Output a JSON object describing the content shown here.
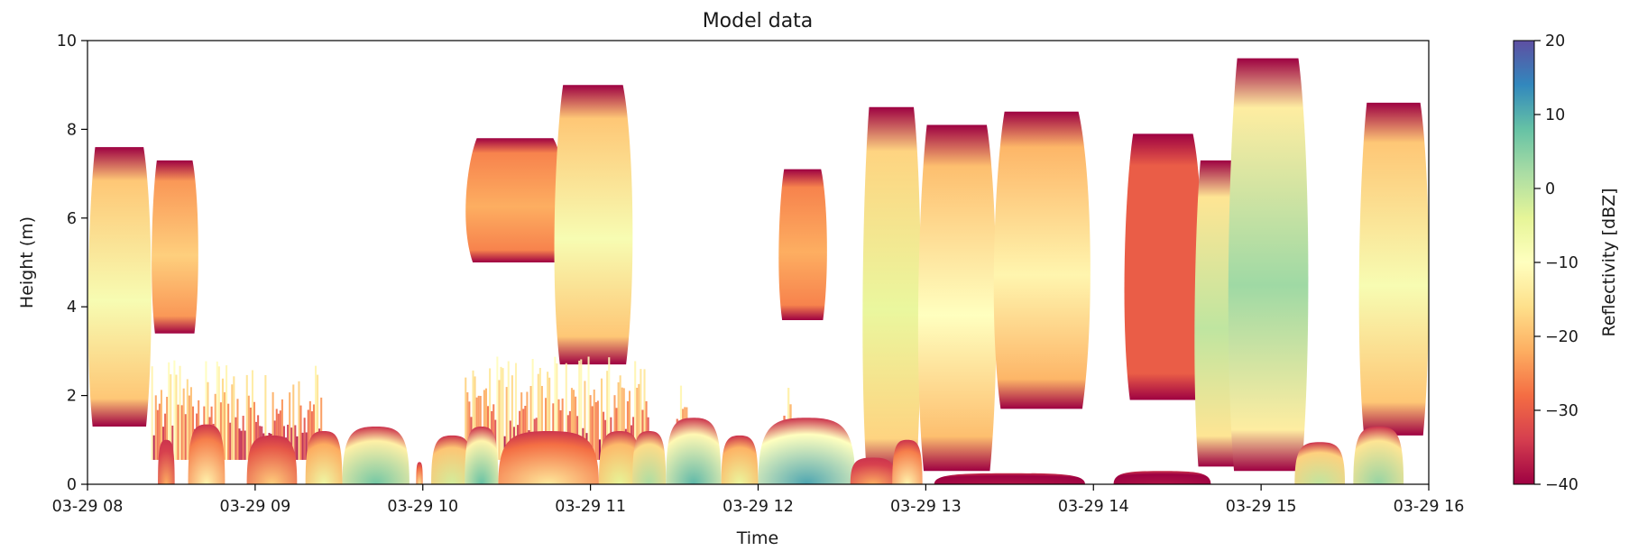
{
  "chart_data": {
    "type": "heatmap",
    "title": "Model data",
    "xlabel": "Time",
    "ylabel": "Height (m)",
    "x_tick_labels": [
      "03-29 08",
      "03-29 09",
      "03-29 10",
      "03-29 11",
      "03-29 12",
      "03-29 13",
      "03-29 14",
      "03-29 15",
      "03-29 16"
    ],
    "x_range_hours": [
      8,
      16
    ],
    "ylim": [
      0,
      10
    ],
    "y_ticks": [
      0,
      2,
      4,
      6,
      8,
      10
    ],
    "colorbar": {
      "label": "Reflectivity [dBZ]",
      "range": [
        -40,
        20
      ],
      "ticks": [
        -40,
        -30,
        -20,
        -10,
        0,
        10,
        20
      ],
      "colormap": "Spectral",
      "tick_labels": [
        "−40",
        "−30",
        "−20",
        "−10",
        "0",
        "10",
        "20"
      ]
    },
    "grid": false,
    "upper_cloud_blobs": [
      {
        "t0": 8.0,
        "t1": 8.38,
        "base": 1.3,
        "top": 7.6,
        "peak": -8
      },
      {
        "t0": 8.38,
        "t1": 8.66,
        "base": 3.4,
        "top": 7.3,
        "peak": -18
      },
      {
        "t0": 10.25,
        "t1": 10.85,
        "base": 5.0,
        "top": 7.8,
        "peak": -22
      },
      {
        "t0": 10.78,
        "t1": 11.25,
        "base": 2.7,
        "top": 9.0,
        "peak": -8
      },
      {
        "t0": 12.12,
        "t1": 12.41,
        "base": 3.7,
        "top": 7.1,
        "peak": -22
      },
      {
        "t0": 12.62,
        "t1": 12.97,
        "base": 0.2,
        "top": 8.5,
        "peak": -5
      },
      {
        "t0": 12.95,
        "t1": 13.42,
        "base": 0.3,
        "top": 8.1,
        "peak": -10
      },
      {
        "t0": 13.4,
        "t1": 13.98,
        "base": 1.7,
        "top": 8.4,
        "peak": -12
      },
      {
        "t0": 14.18,
        "t1": 14.65,
        "base": 1.9,
        "top": 7.9,
        "peak": -30
      },
      {
        "t0": 14.6,
        "t1": 14.92,
        "base": 0.4,
        "top": 7.3,
        "peak": 0
      },
      {
        "t0": 14.8,
        "t1": 15.28,
        "base": 0.3,
        "top": 9.6,
        "peak": 3
      },
      {
        "t0": 15.58,
        "t1": 16.0,
        "base": 1.1,
        "top": 8.6,
        "peak": -8
      }
    ],
    "boundary_layer_segments": [
      {
        "t0": 8.38,
        "t1": 9.4,
        "top": 2.8
      },
      {
        "t0": 10.25,
        "t1": 11.35,
        "top": 2.9
      },
      {
        "t0": 11.5,
        "t1": 11.58,
        "top": 2.3
      },
      {
        "t0": 12.15,
        "t1": 12.2,
        "top": 2.3
      }
    ],
    "surface_cells": [
      {
        "t0": 8.42,
        "t1": 8.52,
        "top": 1.0,
        "peak": -22
      },
      {
        "t0": 8.6,
        "t1": 8.82,
        "top": 1.35,
        "peak": -12
      },
      {
        "t0": 8.95,
        "t1": 9.25,
        "top": 1.1,
        "peak": -18
      },
      {
        "t0": 9.3,
        "t1": 9.52,
        "top": 1.2,
        "peak": -6
      },
      {
        "t0": 9.52,
        "t1": 9.92,
        "top": 1.3,
        "peak": 7
      },
      {
        "t0": 9.96,
        "t1": 10.0,
        "top": 0.5,
        "peak": -15
      },
      {
        "t0": 10.05,
        "t1": 10.3,
        "top": 1.1,
        "peak": -2
      },
      {
        "t0": 10.25,
        "t1": 10.45,
        "top": 1.3,
        "peak": 8
      },
      {
        "t0": 10.45,
        "t1": 11.05,
        "top": 1.2,
        "peak": -14
      },
      {
        "t0": 11.05,
        "t1": 11.3,
        "top": 1.2,
        "peak": -4
      },
      {
        "t0": 11.25,
        "t1": 11.45,
        "top": 1.2,
        "peak": 2
      },
      {
        "t0": 11.45,
        "t1": 11.78,
        "top": 1.5,
        "peak": 9
      },
      {
        "t0": 11.78,
        "t1": 12.0,
        "top": 1.1,
        "peak": -5
      },
      {
        "t0": 12.0,
        "t1": 12.58,
        "top": 1.5,
        "peak": 11
      },
      {
        "t0": 12.55,
        "t1": 12.82,
        "top": 0.6,
        "peak": -22
      },
      {
        "t0": 12.8,
        "t1": 12.98,
        "top": 1.0,
        "peak": -12
      },
      {
        "t0": 13.05,
        "t1": 13.95,
        "top": 0.25,
        "peak": -38
      },
      {
        "t0": 14.12,
        "t1": 14.7,
        "top": 0.3,
        "peak": -38
      },
      {
        "t0": 15.2,
        "t1": 15.5,
        "top": 0.95,
        "peak": 0
      },
      {
        "t0": 15.55,
        "t1": 15.85,
        "top": 1.3,
        "peak": 4
      }
    ]
  }
}
